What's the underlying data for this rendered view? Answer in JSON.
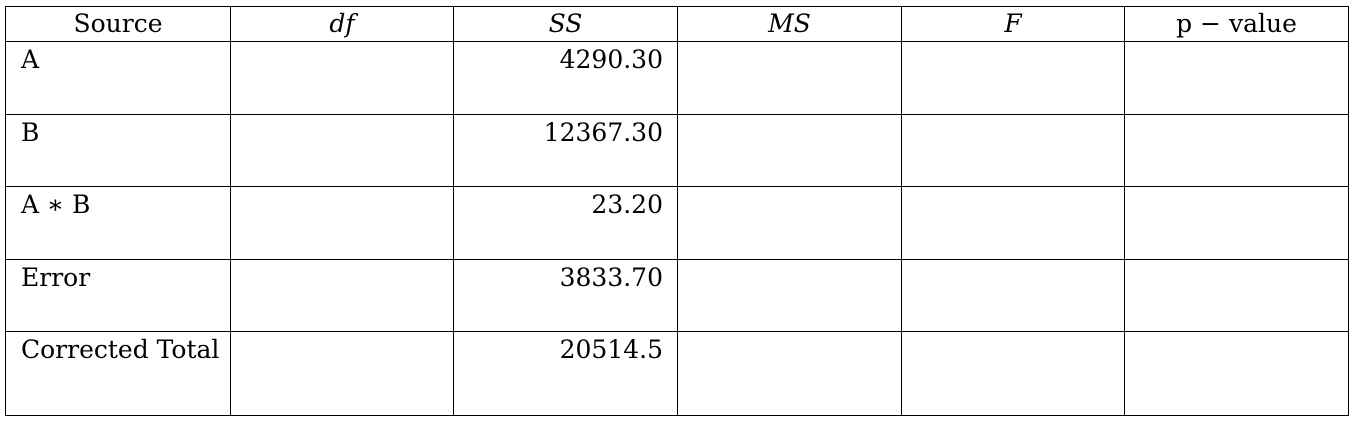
{
  "table": {
    "headers": [
      "Source",
      "df",
      "SS",
      "MS",
      "F",
      "p − value"
    ],
    "rows": [
      {
        "source": "A",
        "df": "",
        "ss": "4290.30",
        "ms": "",
        "f": "",
        "p": ""
      },
      {
        "source": "B",
        "df": "",
        "ss": "12367.30",
        "ms": "",
        "f": "",
        "p": ""
      },
      {
        "source": "A ∗ B",
        "df": "",
        "ss": "23.20",
        "ms": "",
        "f": "",
        "p": ""
      },
      {
        "source": "Error",
        "df": "",
        "ss": "3833.70",
        "ms": "",
        "f": "",
        "p": ""
      },
      {
        "source": "Corrected Total",
        "df": "",
        "ss": "20514.5",
        "ms": "",
        "f": "",
        "p": ""
      }
    ]
  }
}
